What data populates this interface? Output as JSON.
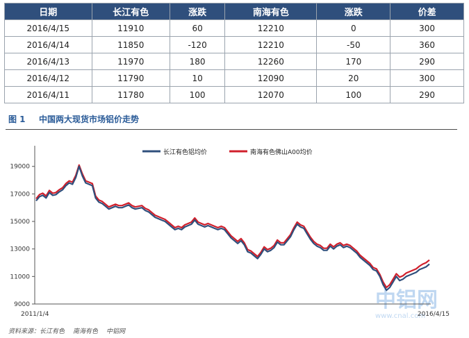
{
  "table": {
    "headers": [
      "日期",
      "长江有色",
      "涨跌",
      "南海有色",
      "涨跌",
      "价差"
    ],
    "rows": [
      [
        "2016/4/15",
        "11910",
        "60",
        "12210",
        "0",
        "300"
      ],
      [
        "2016/4/14",
        "11850",
        "-120",
        "12210",
        "-50",
        "360"
      ],
      [
        "2016/4/13",
        "11970",
        "180",
        "12260",
        "170",
        "290"
      ],
      [
        "2016/4/12",
        "11790",
        "10",
        "12090",
        "20",
        "300"
      ],
      [
        "2016/4/11",
        "11780",
        "100",
        "12070",
        "100",
        "290"
      ]
    ]
  },
  "caption": {
    "number": "图 1",
    "title": "中国两大现货市场铝价走势"
  },
  "source": {
    "label": "资料来源：长江有色",
    "items": [
      "南海有色",
      "中铝网"
    ]
  },
  "watermark": {
    "main": "中铝网",
    "sub": "www.cnal.com"
  },
  "chart_data": {
    "type": "line",
    "title": "",
    "xlabel": "",
    "ylabel": "",
    "x_start_label": "2011/1/4",
    "x_end_label": "2016/4/15",
    "ylim": [
      9000,
      20500
    ],
    "yticks": [
      9000,
      11000,
      13000,
      15000,
      17000,
      19000
    ],
    "grid": false,
    "legend_position": "top",
    "series": [
      {
        "name": "长江有色铝均价",
        "color": "#2f4f7c",
        "values": [
          16500,
          16800,
          16900,
          16700,
          17100,
          16900,
          16950,
          17150,
          17300,
          17600,
          17800,
          17700,
          18200,
          19000,
          18300,
          17800,
          17700,
          17600,
          16700,
          16400,
          16300,
          16100,
          15900,
          16000,
          16100,
          16000,
          16000,
          16100,
          16200,
          16000,
          15900,
          15950,
          16000,
          15800,
          15700,
          15500,
          15300,
          15200,
          15100,
          15000,
          14800,
          14600,
          14400,
          14500,
          14400,
          14600,
          14700,
          14800,
          15100,
          14800,
          14700,
          14600,
          14700,
          14600,
          14500,
          14400,
          14500,
          14400,
          14100,
          13800,
          13600,
          13400,
          13600,
          13300,
          12800,
          12700,
          12500,
          12300,
          12600,
          13000,
          12800,
          12900,
          13100,
          13500,
          13300,
          13300,
          13600,
          13900,
          14400,
          14800,
          14600,
          14500,
          14100,
          13700,
          13400,
          13200,
          13100,
          12900,
          12900,
          13200,
          13000,
          13200,
          13300,
          13100,
          13200,
          13100,
          12900,
          12700,
          12400,
          12200,
          12000,
          11800,
          11500,
          11400,
          11000,
          10400,
          10000,
          10200,
          10600,
          11000,
          10700,
          10800,
          11000,
          11100,
          11200,
          11300,
          11500,
          11600,
          11700,
          11900
        ]
      },
      {
        "name": "南海有色佛山A00均价",
        "color": "#d01f2b",
        "values": [
          16650,
          16950,
          17050,
          16850,
          17250,
          17050,
          17100,
          17300,
          17450,
          17750,
          17950,
          17850,
          18350,
          19100,
          18450,
          17950,
          17850,
          17750,
          16850,
          16550,
          16450,
          16250,
          16050,
          16150,
          16250,
          16150,
          16150,
          16250,
          16350,
          16150,
          16050,
          16100,
          16150,
          15950,
          15850,
          15650,
          15450,
          15350,
          15250,
          15150,
          14950,
          14750,
          14550,
          14650,
          14550,
          14750,
          14850,
          14950,
          15250,
          14950,
          14850,
          14750,
          14850,
          14750,
          14650,
          14550,
          14650,
          14550,
          14250,
          13950,
          13750,
          13550,
          13750,
          13450,
          12950,
          12850,
          12650,
          12450,
          12750,
          13150,
          12950,
          13050,
          13250,
          13650,
          13450,
          13450,
          13750,
          14050,
          14550,
          14950,
          14750,
          14650,
          14250,
          13850,
          13550,
          13350,
          13250,
          13050,
          13050,
          13350,
          13150,
          13350,
          13450,
          13250,
          13350,
          13250,
          13050,
          12850,
          12550,
          12350,
          12150,
          11950,
          11650,
          11550,
          11150,
          10600,
          10200,
          10400,
          10800,
          11200,
          10950,
          11050,
          11250,
          11350,
          11450,
          11550,
          11750,
          11900,
          12000,
          12200
        ]
      }
    ]
  }
}
